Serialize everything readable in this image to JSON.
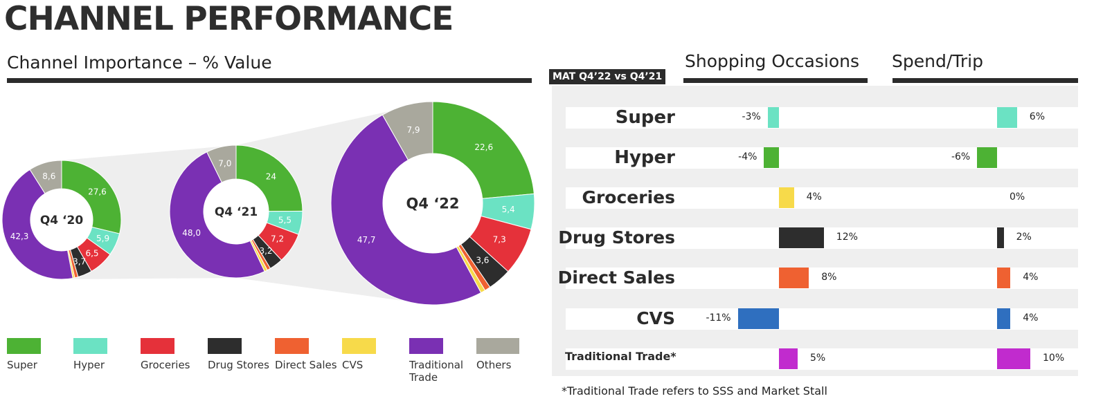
{
  "page_title": "CHANNEL PERFORMANCE",
  "left_section_title": "Channel Importance – % Value",
  "mat_label": "MAT Q4’22 vs Q4’21",
  "footnote": "*Traditional Trade refers to SSS and Market Stall",
  "colors": {
    "Super": "#4db234",
    "Hyper": "#6be2c3",
    "Groceries": "#e5313a",
    "Drug Stores": "#2d2d2d",
    "Direct Sales": "#ef6131",
    "CVS": "#f7da4a",
    "Traditional Trade": "#7a30b3",
    "Others": "#a9a89d",
    "CVS_bar": "#2f6fbf",
    "Traditional_Trade_bar": "#c12bce"
  },
  "legend": [
    "Super",
    "Hyper",
    "Groceries",
    "Drug Stores",
    "Direct Sales",
    "CVS",
    "Traditional Trade",
    "Others"
  ],
  "chart_data": [
    {
      "type": "pie",
      "title": "Channel Importance – % Value",
      "donuts": [
        {
          "label": "Q4 ‘20",
          "segments": [
            {
              "name": "Super",
              "value": 27.6,
              "label": "27,6"
            },
            {
              "name": "Hyper",
              "value": 5.9,
              "label": "5,9"
            },
            {
              "name": "Groceries",
              "value": 6.5,
              "label": "6,5"
            },
            {
              "name": "Drug Stores",
              "value": 3.7,
              "label": "3,7"
            },
            {
              "name": "Direct Sales",
              "value": 0.9,
              "label": ""
            },
            {
              "name": "CVS",
              "value": 0.5,
              "label": ""
            },
            {
              "name": "Traditional Trade",
              "value": 42.3,
              "label": "42,3"
            },
            {
              "name": "Others",
              "value": 8.6,
              "label": "8,6"
            }
          ]
        },
        {
          "label": "Q4 ‘21",
          "segments": [
            {
              "name": "Super",
              "value": 24.0,
              "label": "24"
            },
            {
              "name": "Hyper",
              "value": 5.5,
              "label": "5,5"
            },
            {
              "name": "Groceries",
              "value": 7.2,
              "label": "7,2"
            },
            {
              "name": "Drug Stores",
              "value": 3.2,
              "label": "3,2"
            },
            {
              "name": "Direct Sales",
              "value": 0.8,
              "label": ""
            },
            {
              "name": "CVS",
              "value": 0.7,
              "label": ""
            },
            {
              "name": "Traditional Trade",
              "value": 48.0,
              "label": "48,0"
            },
            {
              "name": "Others",
              "value": 7.0,
              "label": "7,0"
            }
          ]
        },
        {
          "label": "Q4 ‘22",
          "segments": [
            {
              "name": "Super",
              "value": 22.6,
              "label": "22,6"
            },
            {
              "name": "Hyper",
              "value": 5.4,
              "label": "5,4"
            },
            {
              "name": "Groceries",
              "value": 7.3,
              "label": "7,3"
            },
            {
              "name": "Drug Stores",
              "value": 3.6,
              "label": "3,6"
            },
            {
              "name": "Direct Sales",
              "value": 0.9,
              "label": ""
            },
            {
              "name": "CVS",
              "value": 0.7,
              "label": ""
            },
            {
              "name": "Traditional Trade",
              "value": 47.7,
              "label": "47,7"
            },
            {
              "name": "Others",
              "value": 7.9,
              "label": "7,9"
            }
          ]
        }
      ]
    },
    {
      "type": "bar",
      "title": "Shopping Occasions",
      "subtitle": "MAT Q4’22 vs Q4’21",
      "categories": [
        "Super",
        "Hyper",
        "Groceries",
        "Drug Stores",
        "Direct Sales",
        "CVS",
        "Traditional Trade*"
      ],
      "values": [
        -3,
        -4,
        4,
        12,
        8,
        -11,
        5
      ],
      "labels": [
        "-3%",
        "-4%",
        "4%",
        "12%",
        "8%",
        "-11%",
        "5%"
      ]
    },
    {
      "type": "bar",
      "title": "Spend/Trip",
      "subtitle": "MAT Q4’22 vs Q4’21",
      "categories": [
        "Super",
        "Hyper",
        "Groceries",
        "Drug Stores",
        "Direct Sales",
        "CVS",
        "Traditional Trade*"
      ],
      "values": [
        6,
        -6,
        0,
        2,
        4,
        4,
        10
      ],
      "labels": [
        "6%",
        "-6%",
        "0%",
        "2%",
        "4%",
        "4%",
        "10%"
      ]
    }
  ]
}
